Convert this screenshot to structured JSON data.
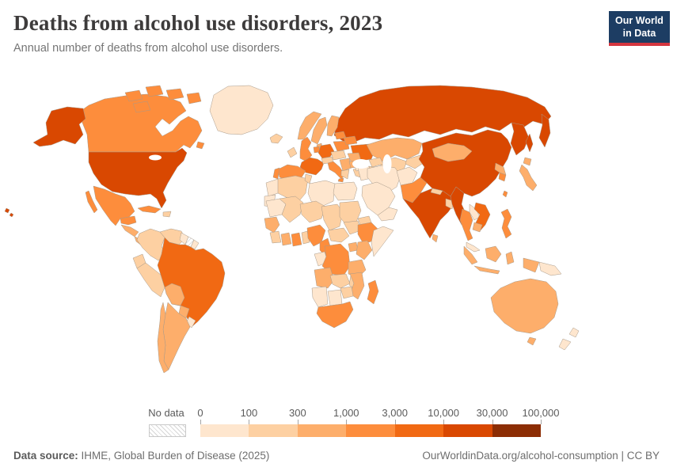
{
  "header": {
    "title": "Deaths from alcohol use disorders, 2023",
    "subtitle": "Annual number of deaths from alcohol use disorders.",
    "logo": {
      "line1": "Our World",
      "line2": "in Data",
      "bg_color": "#1d3d63",
      "accent_color": "#d4353f"
    }
  },
  "legend": {
    "no_data_label": "No data",
    "tick_labels": [
      "0",
      "100",
      "300",
      "1,000",
      "3,000",
      "10,000",
      "30,000",
      "100,000"
    ],
    "bin_colors": [
      "#fee6ce",
      "#fdd0a2",
      "#fdae6b",
      "#fd8d3c",
      "#f16913",
      "#d94801",
      "#8c2d04"
    ]
  },
  "footer": {
    "source_label": "Data source:",
    "source_text": " IHME, Global Burden of Disease (2025)",
    "attribution": "OurWorldinData.org/alcohol-consumption | CC BY"
  },
  "chart_data": {
    "type": "choropleth_map",
    "title": "Deaths from alcohol use disorders, 2023",
    "unit": "deaths per year",
    "scale": "log-binned",
    "bin_edges": [
      0,
      100,
      300,
      1000,
      3000,
      10000,
      30000,
      100000
    ],
    "bins": [
      {
        "range": "0–100",
        "color": "#fee6ce"
      },
      {
        "range": "100–300",
        "color": "#fdd0a2"
      },
      {
        "range": "300–1,000",
        "color": "#fdae6b"
      },
      {
        "range": "1,000–3,000",
        "color": "#fd8d3c"
      },
      {
        "range": "3,000–10,000",
        "color": "#f16913"
      },
      {
        "range": "10,000–30,000",
        "color": "#d94801"
      },
      {
        "range": "30,000–100,000",
        "color": "#8c2d04"
      }
    ],
    "no_data_regions": [
      "suriname"
    ],
    "country_bins": {
      "greenland": 0,
      "uruguay": 0,
      "guyana": 0,
      "french-guiana": 0,
      "morocco": 0,
      "western-sahara": 0,
      "libya": 0,
      "egypt": 0,
      "mauritania": 0,
      "somalia": 0,
      "gabon-congo": 0,
      "namibia": 0,
      "botswana": 0,
      "iran": 0,
      "iraq": 0,
      "syria-jordan": 0,
      "saudi-arabia": 0,
      "yemen-oman": 0,
      "afghanistan": 0,
      "laos": 0,
      "malaysia": 0,
      "papua-new-guinea": 0,
      "new-zealand-north": 0,
      "new-zealand-south": 0,
      "colombia": 1,
      "venezuela": 1,
      "ecuador": 1,
      "peru": 1,
      "hispaniola": 1,
      "iceland": 1,
      "ireland": 1,
      "algeria": 1,
      "tunisia": 1,
      "mali": 1,
      "niger": 1,
      "chad": 1,
      "sudan": 1,
      "eritrea": 1,
      "south-sudan": 1,
      "central-african-republic": 1,
      "sierra-liberia": 1,
      "togo-benin": 1,
      "malawi": 1,
      "zambia": 1,
      "zimbabwe": 1,
      "turkey": 1,
      "central-asia": 1,
      "kyrgyz-tajik": 1,
      "caucasus": 1,
      "nepal": 1,
      "bangladesh": 1,
      "greece": 1,
      "czech-hungary": 1,
      "switzerland-austria": 1,
      "bolivia": 2,
      "paraguay": 2,
      "argentina": 2,
      "chile": 2,
      "guatemala-honduras": 2,
      "nicaragua-panama": 2,
      "norway": 2,
      "sweden": 2,
      "finland": 2,
      "denmark": 2,
      "kazakhstan": 2,
      "mongolia": 2,
      "north-korea": 2,
      "japan-honshu": 2,
      "japan-hokkaido": 2,
      "cambodia": 2,
      "indonesia-sumatra": 2,
      "indonesia-java": 2,
      "indonesia-borneo": 2,
      "indonesia-sulawesi": 2,
      "indonesia-papua": 2,
      "australia": 2,
      "tasmania": 2,
      "senegal-guinea": 2,
      "ivory-coast": 2,
      "uganda": 2,
      "kenya": 2,
      "tanzania": 2,
      "angola": 2,
      "mozambique": 2,
      "sri-lanka": 2,
      "balkans": 2,
      "romania": 2,
      "bulgaria": 2,
      "canada": 3,
      "arctic-1": 3,
      "arctic-2": 3,
      "arctic-3": 3,
      "arctic-4": 3,
      "arctic-5": 3,
      "newfoundland": 3,
      "mexico": 3,
      "baja": 3,
      "yucatan": 3,
      "cuba": 3,
      "uk": 3,
      "spain": 3,
      "portugal": 3,
      "italy": 3,
      "sicily": 3,
      "poland": 3,
      "belarus": 3,
      "baltics": 3,
      "netherlands-belgium": 3,
      "pakistan": 3,
      "thailand": 3,
      "south-korea": 3,
      "taiwan": 3,
      "philippines": 3,
      "nigeria": 3,
      "ghana": 3,
      "cameroon": 3,
      "ethiopia": 3,
      "drc": 3,
      "madagascar": 3,
      "south-africa": 3,
      "brazil": 4,
      "france": 4,
      "germany": 4,
      "ukraine": 4,
      "vietnam": 4,
      "usa": 5,
      "alaska": 5,
      "hawaii": 5,
      "hawaii-2": 5,
      "russia": 5,
      "russia-far-east": 5,
      "kamchatka": 5,
      "sakhalin": 5,
      "china": 5,
      "india": 5,
      "myanmar": 5
    }
  }
}
